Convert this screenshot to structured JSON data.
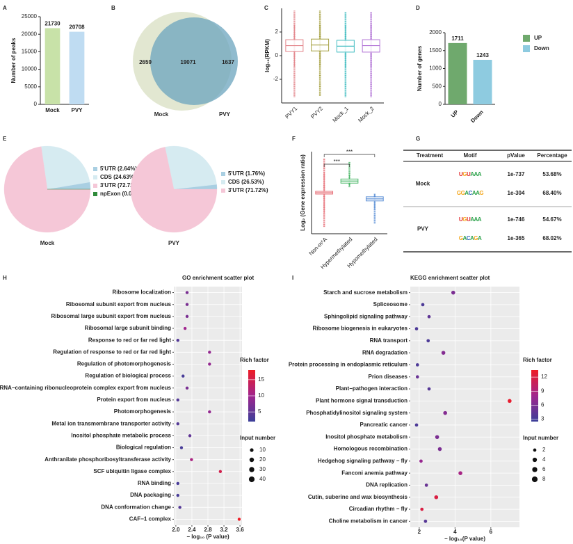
{
  "chart_data": [
    {
      "type": "bar",
      "panel": "A",
      "ylabel": "Number of peaks",
      "categories": [
        "Mock",
        "PVY"
      ],
      "values": [
        21730,
        20708
      ],
      "colors": [
        "#c8e2a8",
        "#bfdcf2"
      ],
      "ylim": [
        0,
        25000
      ],
      "yticks": [
        0,
        5000,
        10000,
        15000,
        20000,
        25000
      ]
    },
    {
      "type": "venn",
      "panel": "B",
      "sets": [
        "Mock",
        "PVY"
      ],
      "values": [
        2659,
        19071,
        1637
      ],
      "colors": [
        "#dfe4cc",
        "#6ba4bd"
      ]
    },
    {
      "type": "box",
      "panel": "C",
      "ylabel": "log₁₀(RPKM)",
      "categories": [
        "PVY1",
        "PVY2",
        "Mock_1",
        "Mock_2"
      ],
      "colors": [
        "#e3868c",
        "#a6a142",
        "#3fbcc0",
        "#b274d6"
      ],
      "boxes": [
        {
          "min": -3.5,
          "low": -0.9,
          "q1": 0.35,
          "median": 0.85,
          "q3": 1.35,
          "high": 2.6,
          "max": 3.8
        },
        {
          "min": -3.4,
          "low": -0.85,
          "q1": 0.4,
          "median": 0.9,
          "q3": 1.4,
          "high": 2.6,
          "max": 3.8
        },
        {
          "min": -3.5,
          "low": -1.0,
          "q1": 0.3,
          "median": 0.8,
          "q3": 1.3,
          "high": 2.55,
          "max": 3.7
        },
        {
          "min": -3.5,
          "low": -0.95,
          "q1": 0.3,
          "median": 0.85,
          "q3": 1.35,
          "high": 2.6,
          "max": 3.7
        }
      ],
      "ylim": [
        -4,
        4
      ],
      "yticks": [
        -2,
        0,
        2
      ]
    },
    {
      "type": "bar",
      "panel": "D",
      "ylabel": "Number of genes",
      "categories": [
        "UP",
        "Down"
      ],
      "values": [
        1711,
        1243
      ],
      "colors": [
        "#6fa96d",
        "#8ecbe0"
      ],
      "ylim": [
        0,
        2000
      ],
      "yticks": [
        0,
        500,
        1000,
        1500,
        2000
      ],
      "legend": true
    },
    {
      "type": "pie",
      "panel": "E",
      "title": "Mock",
      "values": [
        2.64,
        24.63,
        72.72,
        0.01
      ],
      "value_labels": [
        "5'UTR (2.64%)",
        "CDS (24.63%)",
        "3'UTR (72.72%)",
        "npExon (0.01%)"
      ],
      "colors": [
        "#a9cfe2",
        "#d6ebf1",
        "#f5c7d7",
        "#2f8b3a"
      ]
    },
    {
      "type": "pie",
      "title": "PVY",
      "values": [
        1.76,
        26.53,
        71.72
      ],
      "value_labels": [
        "5'UTR (1.76%)",
        "CDS (26.53%)",
        "3'UTR (71.72%)"
      ],
      "colors": [
        "#a9cfe2",
        "#d6ebf1",
        "#f5c7d7"
      ]
    },
    {
      "type": "box",
      "panel": "F",
      "ylabel": "Log₂ (Gene expression ratio)",
      "categories": [
        "Non-m⁶A",
        "Hypermethylated",
        "Hypomethylated"
      ],
      "colors": [
        "#e8747c",
        "#4db86a",
        "#5b8fd6"
      ],
      "boxes": [
        {
          "min": -5,
          "low": -3,
          "q1": -0.2,
          "median": 0,
          "q3": 0.2,
          "high": 3,
          "max": 5
        },
        {
          "min": 0.8,
          "low": 1.0,
          "q1": 1.4,
          "median": 1.7,
          "q3": 2.0,
          "high": 2.6,
          "max": 4.5
        },
        {
          "min": -4.5,
          "low": -2.4,
          "q1": -1.2,
          "median": -0.9,
          "q3": -0.6,
          "high": -0.2,
          "max": -0.1
        }
      ],
      "ylim": [
        -6,
        6
      ],
      "significance": [
        {
          "from": "Non-m⁶A",
          "to": "Hypermethylated",
          "label": "***"
        },
        {
          "from": "Non-m⁶A",
          "to": "Hypomethylated",
          "label": "***"
        }
      ]
    },
    {
      "type": "dotplot",
      "panel": "H",
      "title": "GO enrichment scatter plot",
      "xlabel": "− log₁₀ (P value)",
      "categories": [
        "Ribosome localization",
        "Ribosomal subunit export from nucleus",
        "Ribosomal large subunit export from nucleus",
        "Ribosomal large subunit binding",
        "Response to red or far red light",
        "Regulation of response to red or far red light",
        "Regulation of photomorphogenesis",
        "Regulation of biological process",
        "rRNA−containing ribonucleoprotein complex export from nucleus",
        "Protein export from nucleus",
        "Photomorphogenesis",
        "Metal ion transmembrane transporter activity",
        "Inositol phosphate metabolic process",
        "Biological regulation",
        "Anthranilate phosphoribosyltransferase activity",
        "SCF ubiquitin ligase complex",
        "RNA binding",
        "DNA packaging",
        "DNA conformation change",
        "CAF−1 complex"
      ],
      "values": [
        2.28,
        2.28,
        2.28,
        2.23,
        2.05,
        2.84,
        2.84,
        2.18,
        2.28,
        2.05,
        2.84,
        2.05,
        2.35,
        2.14,
        2.39,
        3.11,
        2.05,
        2.05,
        2.1,
        3.58
      ],
      "rich_factor": [
        7,
        7,
        7,
        10,
        4,
        9,
        9,
        3,
        7,
        4,
        9,
        4,
        5,
        3,
        11,
        15,
        3,
        3,
        4,
        18
      ],
      "input_number": [
        6,
        6,
        6,
        6,
        6,
        6,
        6,
        6,
        6,
        6,
        6,
        6,
        6,
        6,
        6,
        6,
        6,
        6,
        6,
        6
      ],
      "xlim": [
        1.95,
        3.65
      ],
      "xticks": [
        {
          "value": 2,
          "label": "2.0"
        },
        2.4,
        2.8,
        3.2,
        3.6
      ],
      "color_title": "Rich factor",
      "clim": [
        2,
        18
      ],
      "cticks": [
        5,
        10,
        15
      ],
      "color_scale": [
        "#3b3f99",
        "#a0258e",
        "#ee1c25"
      ],
      "size_title": "Input number",
      "size_range": [
        2,
        40
      ],
      "size_ticks": [
        10,
        20,
        30,
        40
      ]
    },
    {
      "type": "dotplot",
      "panel": "I",
      "title": "KEGG enrichment scatter plot",
      "xlabel": "− log₁₀(P value)",
      "categories": [
        "Starch and sucrose metabolism",
        "Spliceosome",
        "Sphingolipid signaling pathway",
        "Ribosome biogenesis in eukaryotes",
        "RNA transport",
        "RNA degradation",
        "Protein processing in endoplasmic reticulum",
        "Prion diseases",
        "Plant−pathogen interaction",
        "Plant hormone signal transduction",
        "Phosphatidylinositol signaling system",
        "Pancreatic cancer",
        "Inositol phosphate metabolism",
        "Homologous recombination",
        "Hedgehog signaling pathway − fly",
        "Fanconi anemia pathway",
        "DNA replication",
        "Cutin, suberine and wax biosynthesis",
        "Circadian rhythm − fly",
        "Choline metabolism in cancer"
      ],
      "values": [
        3.9,
        2.2,
        2.55,
        1.85,
        2.5,
        3.35,
        1.9,
        1.9,
        2.55,
        7.05,
        3.45,
        1.85,
        3.0,
        3.15,
        2.1,
        4.3,
        2.4,
        2.95,
        2.15,
        2.35
      ],
      "rich_factor": [
        6,
        3.5,
        4.5,
        3.5,
        3.5,
        6.5,
        3.5,
        5,
        4,
        13,
        6.5,
        3.5,
        6,
        6,
        7.5,
        8.5,
        5,
        12,
        12,
        4
      ],
      "input_number": [
        3,
        2,
        2,
        2,
        2,
        3,
        2,
        2,
        2,
        3,
        3,
        2,
        3,
        3,
        2,
        3,
        2,
        3,
        2,
        2
      ],
      "xlim": [
        1.5,
        7.6
      ],
      "xticks": [
        2,
        4,
        6
      ],
      "color_title": "Rich factor",
      "clim": [
        2.5,
        13.5
      ],
      "cticks": [
        3,
        6,
        9,
        12
      ],
      "color_scale": [
        "#3b3f99",
        "#a0258e",
        "#ee1c25"
      ],
      "size_title": "Input number",
      "size_range": [
        1,
        8
      ],
      "size_ticks": [
        2,
        4,
        6,
        8
      ]
    }
  ],
  "table": {
    "panel": "G",
    "header": [
      "Treatment",
      "Motif",
      "pValue",
      "Percentage"
    ],
    "groups": [
      {
        "treatment": "Mock",
        "rows": [
          {
            "motif": "UGUAAA",
            "pvalue": "1e-737",
            "percentage": "53.68%"
          },
          {
            "motif": "GGACAAG",
            "pvalue": "1e-304",
            "percentage": "68.40%"
          }
        ]
      },
      {
        "treatment": "PVY",
        "rows": [
          {
            "motif": "UGUAAA",
            "pvalue": "1e-746",
            "percentage": "54.67%"
          },
          {
            "motif": "GACAGA",
            "pvalue": "1e-365",
            "percentage": "68.02%"
          }
        ]
      }
    ]
  }
}
